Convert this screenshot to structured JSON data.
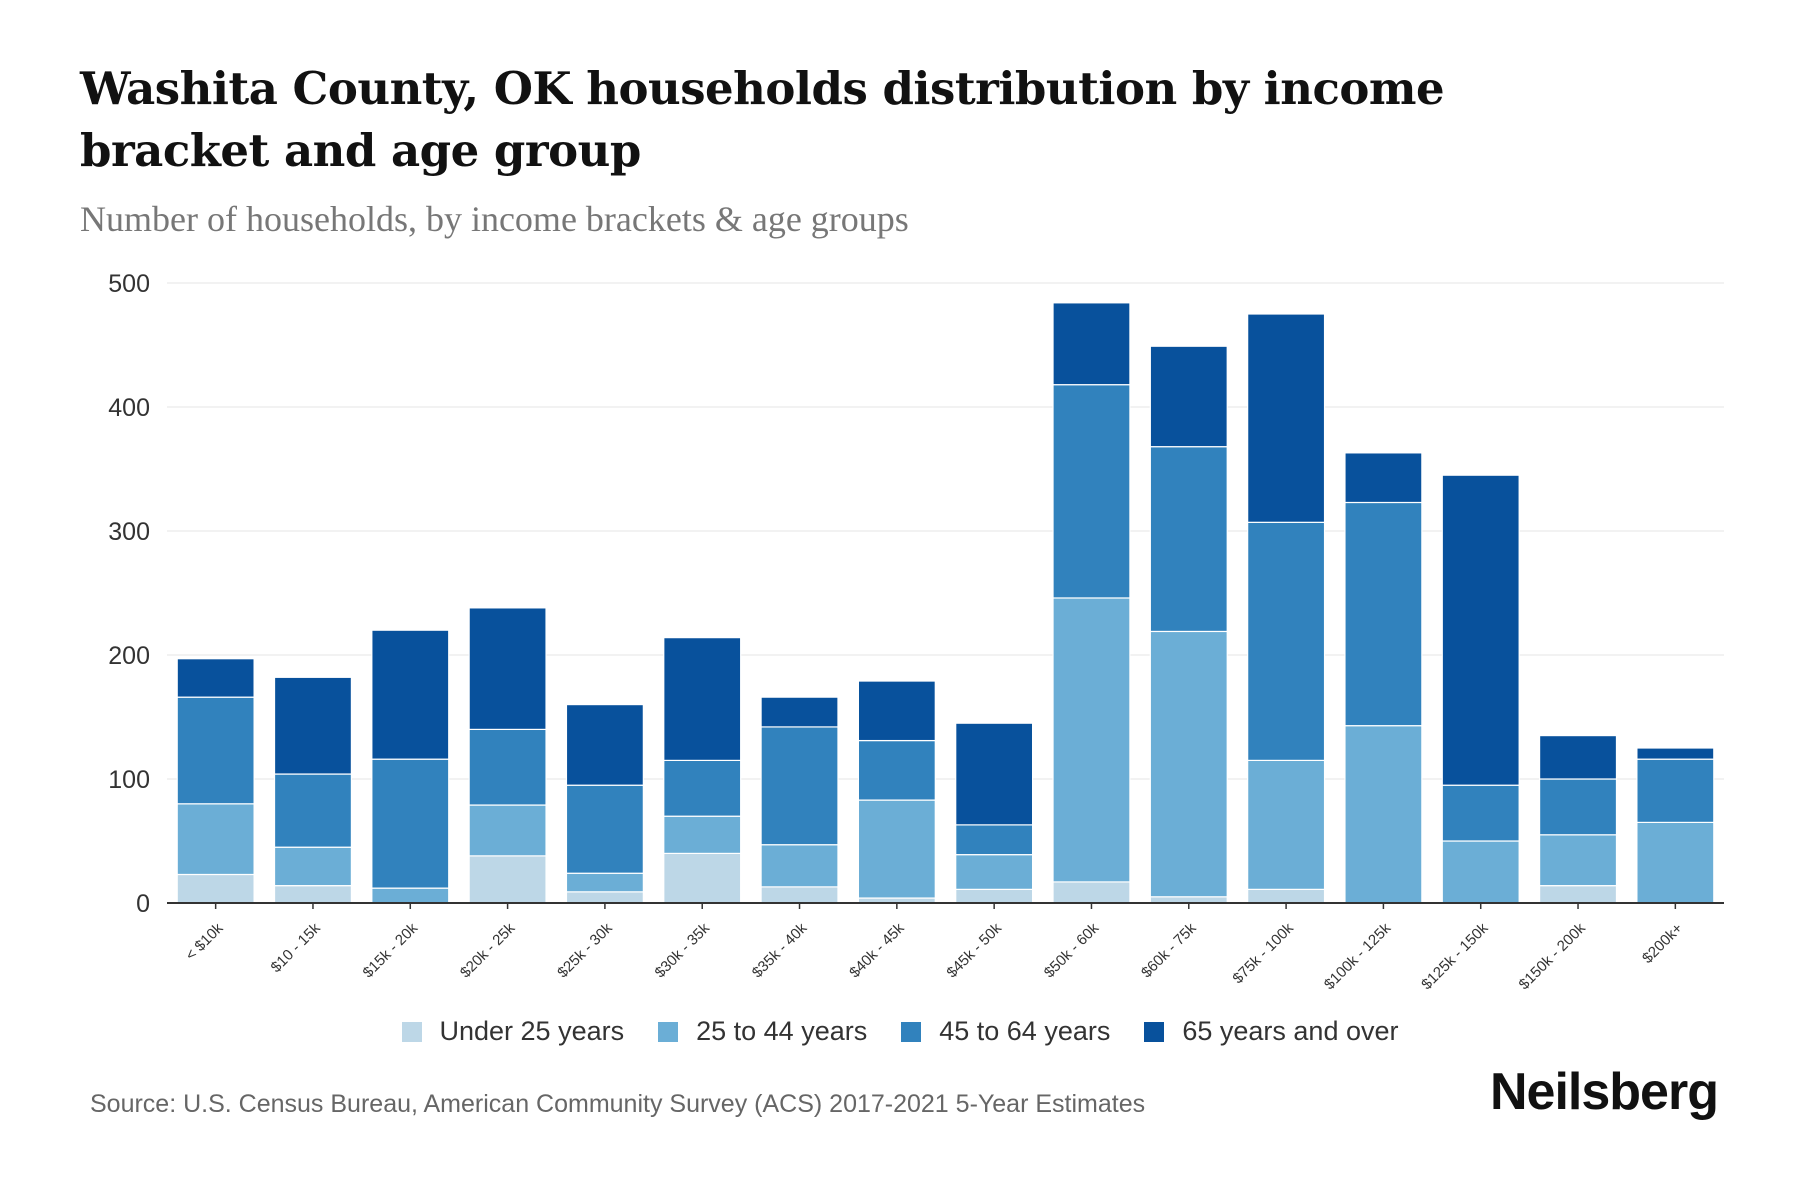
{
  "title": "Washita County, OK households distribution by income bracket and age group",
  "subtitle": "Number of households, by income brackets & age groups",
  "source": "Source: U.S. Census Bureau, American Community Survey (ACS) 2017-2021 5-Year Estimates",
  "logo": "Neilsberg",
  "chart_data": {
    "type": "bar",
    "stacked": true,
    "title": "Washita County, OK households distribution by income bracket and age group",
    "xlabel": "",
    "ylabel": "Number of households",
    "ylim": [
      0,
      500
    ],
    "yticks": [
      0,
      100,
      200,
      300,
      400,
      500
    ],
    "grid": true,
    "legend_position": "bottom",
    "categories": [
      "< $10k",
      "$10 - 15k",
      "$15k - 20k",
      "$20k - 25k",
      "$25k - 30k",
      "$30k - 35k",
      "$35k - 40k",
      "$40k - 45k",
      "$45k - 50k",
      "$50k - 60k",
      "$60k - 75k",
      "$75k - 100k",
      "$100k - 125k",
      "$125k - 150k",
      "$150k - 200k",
      "$200k+"
    ],
    "series": [
      {
        "name": "Under 25 years",
        "color": "#bdd7e7",
        "values": [
          23,
          14,
          0,
          38,
          9,
          40,
          13,
          4,
          11,
          17,
          5,
          11,
          0,
          0,
          14,
          0
        ]
      },
      {
        "name": "25 to 44 years",
        "color": "#6baed6",
        "values": [
          57,
          31,
          12,
          41,
          15,
          30,
          34,
          79,
          28,
          229,
          214,
          104,
          143,
          50,
          41,
          65
        ]
      },
      {
        "name": "45 to 64 years",
        "color": "#3182bd",
        "values": [
          86,
          59,
          104,
          61,
          71,
          45,
          95,
          48,
          24,
          172,
          149,
          192,
          180,
          45,
          45,
          51
        ]
      },
      {
        "name": "65 years and over",
        "color": "#08519c",
        "values": [
          31,
          78,
          104,
          98,
          65,
          99,
          24,
          48,
          82,
          66,
          81,
          168,
          40,
          250,
          35,
          9
        ]
      }
    ]
  }
}
